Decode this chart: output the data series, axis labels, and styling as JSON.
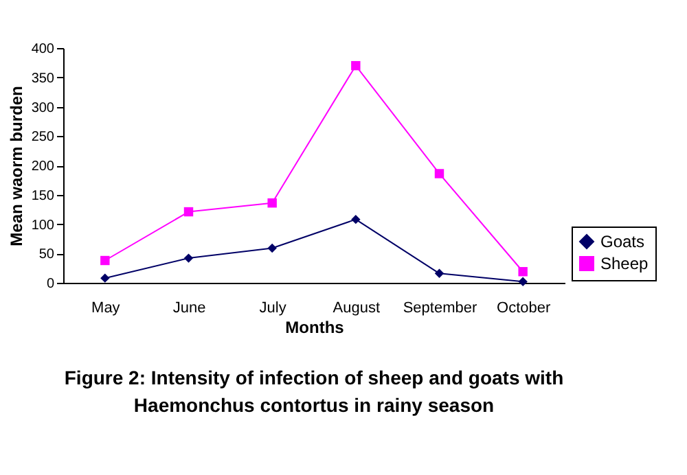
{
  "chart_data": {
    "type": "line",
    "title": "Figure 2: Intensity of infection of sheep and goats with\nHaemonchus contortus in rainy season",
    "xlabel": "Months",
    "ylabel": "Mean waorm burden",
    "categories": [
      "May",
      "June",
      "July",
      "August",
      "September",
      "October"
    ],
    "series": [
      {
        "name": "Goats",
        "color": "#000066",
        "marker": "diamond",
        "values": [
          8,
          42,
          59,
          108,
          16,
          2
        ]
      },
      {
        "name": "Sheep",
        "color": "#ff00ff",
        "marker": "square",
        "values": [
          38,
          121,
          136,
          370,
          186,
          19
        ]
      }
    ],
    "ylim": [
      0,
      400
    ],
    "yticks": [
      0,
      50,
      100,
      150,
      200,
      250,
      300,
      350,
      400
    ],
    "grid": false,
    "legend": "right"
  }
}
